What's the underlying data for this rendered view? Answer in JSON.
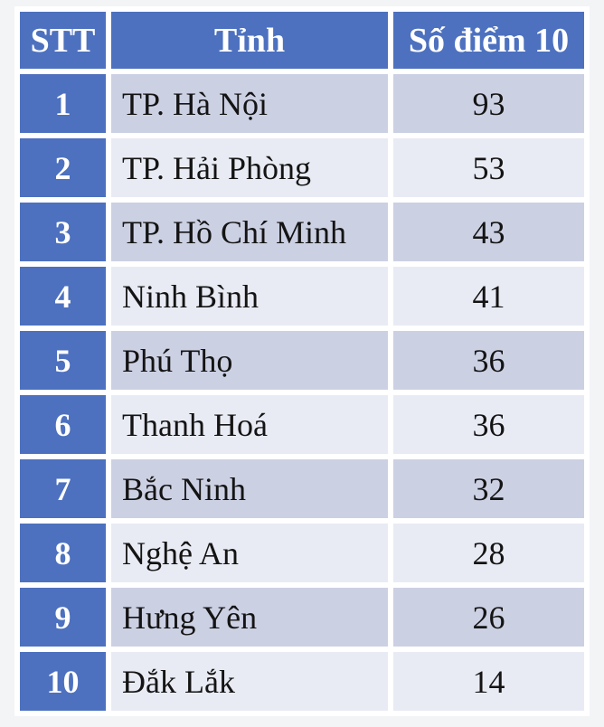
{
  "colors": {
    "header_bg": "#4d71bf",
    "index_column_bg": "#4d71bf",
    "row_dark_bg": "#ccd0e3",
    "row_light_bg": "#e9ebf4",
    "gutter": "#ffffff",
    "page_bg": "#f3f4f6",
    "header_text": "#ffffff",
    "body_text": "#141414"
  },
  "table": {
    "columns": [
      {
        "key": "stt",
        "label": "STT"
      },
      {
        "key": "province",
        "label": "Tỉnh"
      },
      {
        "key": "score",
        "label": "Số điểm 10"
      }
    ],
    "rows": [
      {
        "stt": "1",
        "province": "TP. Hà Nội",
        "score": "93"
      },
      {
        "stt": "2",
        "province": "TP. Hải Phòng",
        "score": "53"
      },
      {
        "stt": "3",
        "province": "TP. Hồ Chí Minh",
        "score": "43"
      },
      {
        "stt": "4",
        "province": "Ninh Bình",
        "score": "41"
      },
      {
        "stt": "5",
        "province": "Phú Thọ",
        "score": "36"
      },
      {
        "stt": "6",
        "province": "Thanh Hoá",
        "score": "36"
      },
      {
        "stt": "7",
        "province": "Bắc Ninh",
        "score": "32"
      },
      {
        "stt": "8",
        "province": "Nghệ An",
        "score": "28"
      },
      {
        "stt": "9",
        "province": "Hưng Yên",
        "score": "26"
      },
      {
        "stt": "10",
        "province": "Đắk Lắk",
        "score": "14"
      }
    ]
  },
  "chart_data": {
    "type": "table",
    "title": "Số điểm 10",
    "columns": [
      "STT",
      "Tỉnh",
      "Số điểm 10"
    ],
    "categories": [
      "TP. Hà Nội",
      "TP. Hải Phòng",
      "TP. Hồ Chí Minh",
      "Ninh Bình",
      "Phú Thọ",
      "Thanh Hoá",
      "Bắc Ninh",
      "Nghệ An",
      "Hưng Yên",
      "Đắk Lắk"
    ],
    "values": [
      93,
      53,
      43,
      41,
      36,
      36,
      32,
      28,
      26,
      14
    ],
    "layout": "ranked list, rank 1-10, alternating row shading, blue header and index column"
  }
}
